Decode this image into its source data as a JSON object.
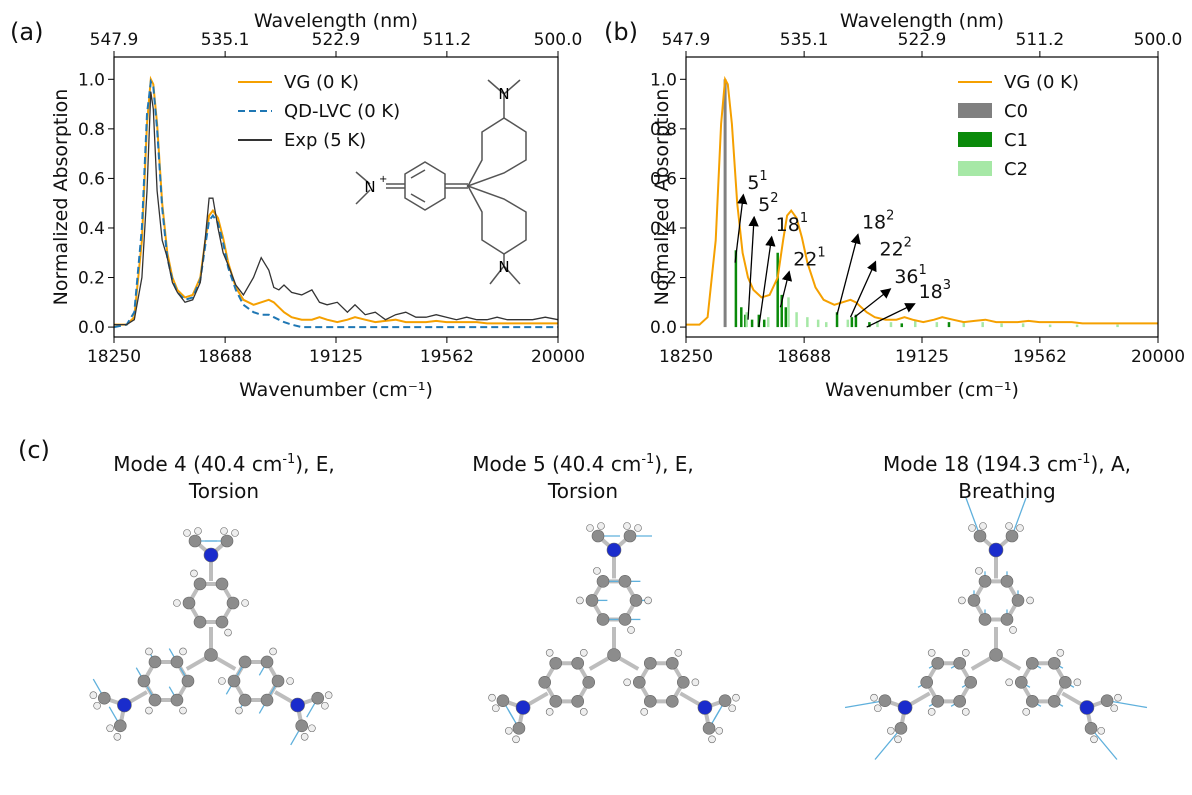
{
  "panel_labels": [
    "(a)",
    "(b)",
    "(c)"
  ],
  "colors": {
    "vg": "#f5a000",
    "qd": "#1f77b4",
    "exp": "#333333",
    "c0": "#808080",
    "c1": "#0a8a0a",
    "c2": "#a6e8a6",
    "nitrogen": "#1a2ccc",
    "carbon": "#8c8c8c",
    "hydrogen": "#eeeeee",
    "vector": "#5fb0dc"
  },
  "chart_data": [
    {
      "type": "line",
      "panel": "(a)",
      "xlabel": "Wavenumber (cm⁻¹)",
      "ylabel": "Normalized Absorption",
      "top_xlabel": "Wavelength (nm)",
      "xlim": [
        18250,
        20000
      ],
      "ylim": [
        -0.04,
        1.09
      ],
      "xticks": [
        "18250",
        "18688",
        "19125",
        "19562",
        "20000"
      ],
      "xtick_values": [
        18250,
        18688,
        19125,
        19562,
        20000
      ],
      "top_xticks": [
        "547.9",
        "535.1",
        "522.9",
        "511.2",
        "500.0"
      ],
      "yticks": [
        "0.0",
        "0.2",
        "0.4",
        "0.6",
        "0.8",
        "1.0"
      ],
      "ytick_values": [
        0.0,
        0.2,
        0.4,
        0.6,
        0.8,
        1.0
      ],
      "legend_position": "top-right",
      "series": [
        {
          "name": "VG (0 K)",
          "color": "#f5a000",
          "style": "solid",
          "x": [
            18250,
            18300,
            18330,
            18360,
            18380,
            18395,
            18405,
            18420,
            18440,
            18460,
            18480,
            18500,
            18530,
            18560,
            18590,
            18610,
            18625,
            18640,
            18660,
            18680,
            18700,
            18730,
            18760,
            18800,
            18830,
            18860,
            18880,
            18900,
            18920,
            18950,
            18990,
            19030,
            19060,
            19090,
            19130,
            19170,
            19200,
            19240,
            19280,
            19320,
            19360,
            19400,
            19440,
            19480,
            19520,
            19560,
            19600,
            19640,
            19680,
            19720,
            19760,
            19800,
            19850,
            19900,
            19950,
            20000
          ],
          "y": [
            0.01,
            0.01,
            0.04,
            0.35,
            0.82,
            1.0,
            0.98,
            0.82,
            0.5,
            0.3,
            0.2,
            0.15,
            0.12,
            0.13,
            0.2,
            0.35,
            0.45,
            0.47,
            0.44,
            0.36,
            0.26,
            0.16,
            0.11,
            0.09,
            0.1,
            0.11,
            0.1,
            0.08,
            0.06,
            0.04,
            0.03,
            0.03,
            0.04,
            0.03,
            0.02,
            0.03,
            0.04,
            0.03,
            0.02,
            0.025,
            0.03,
            0.02,
            0.02,
            0.02,
            0.025,
            0.02,
            0.02,
            0.02,
            0.02,
            0.015,
            0.015,
            0.015,
            0.015,
            0.015,
            0.015,
            0.015
          ]
        },
        {
          "name": "QD-LVC  (0 K)",
          "color": "#1f77b4",
          "style": "dashed",
          "x": [
            18250,
            18300,
            18330,
            18360,
            18380,
            18395,
            18405,
            18420,
            18440,
            18460,
            18480,
            18500,
            18530,
            18560,
            18590,
            18610,
            18625,
            18640,
            18660,
            18680,
            18700,
            18730,
            18760,
            18800,
            18830,
            18860,
            18880,
            18900,
            18920,
            18950,
            18990,
            19030,
            19060,
            19090,
            19130,
            19170,
            19200,
            19240,
            19280,
            19320,
            19360,
            19400,
            19440,
            19480,
            19520,
            19560,
            19600,
            19640,
            19680,
            19720,
            19760,
            19800,
            19850,
            19900,
            19950,
            20000
          ],
          "y": [
            0.0,
            0.01,
            0.06,
            0.4,
            0.86,
            0.99,
            0.97,
            0.8,
            0.48,
            0.28,
            0.19,
            0.14,
            0.11,
            0.12,
            0.19,
            0.33,
            0.43,
            0.45,
            0.42,
            0.34,
            0.24,
            0.15,
            0.09,
            0.06,
            0.05,
            0.05,
            0.04,
            0.03,
            0.02,
            0.01,
            0.0,
            0.0,
            0.0,
            0.0,
            0.0,
            0.0,
            0.0,
            0.0,
            0.0,
            0.0,
            0.0,
            0.0,
            0.0,
            0.0,
            0.0,
            0.0,
            0.0,
            0.0,
            0.0,
            0.0,
            0.0,
            0.0,
            0.0,
            0.0,
            0.0,
            0.0
          ]
        },
        {
          "name": "Exp (5 K)",
          "color": "#333333",
          "style": "solid",
          "x": [
            18250,
            18300,
            18330,
            18360,
            18380,
            18395,
            18405,
            18420,
            18440,
            18460,
            18480,
            18500,
            18530,
            18560,
            18590,
            18610,
            18625,
            18640,
            18660,
            18680,
            18700,
            18730,
            18760,
            18800,
            18830,
            18860,
            18880,
            18900,
            18920,
            18950,
            18990,
            19030,
            19060,
            19090,
            19130,
            19170,
            19200,
            19240,
            19280,
            19320,
            19360,
            19400,
            19440,
            19480,
            19520,
            19560,
            19600,
            19640,
            19680,
            19720,
            19760,
            19800,
            19850,
            19900,
            19950,
            20000
          ],
          "y": [
            0.01,
            0.01,
            0.03,
            0.2,
            0.55,
            0.95,
            0.88,
            0.55,
            0.35,
            0.28,
            0.18,
            0.14,
            0.1,
            0.11,
            0.18,
            0.36,
            0.52,
            0.52,
            0.4,
            0.3,
            0.25,
            0.17,
            0.13,
            0.2,
            0.28,
            0.23,
            0.16,
            0.15,
            0.17,
            0.14,
            0.13,
            0.15,
            0.1,
            0.09,
            0.1,
            0.06,
            0.09,
            0.05,
            0.06,
            0.03,
            0.05,
            0.06,
            0.04,
            0.04,
            0.05,
            0.04,
            0.03,
            0.04,
            0.03,
            0.03,
            0.04,
            0.03,
            0.03,
            0.03,
            0.04,
            0.03
          ]
        }
      ]
    },
    {
      "type": "line",
      "panel": "(b)",
      "xlabel": "Wavenumber (cm⁻¹)",
      "ylabel": "Normalized Absorption",
      "top_xlabel": "Wavelength (nm)",
      "xlim": [
        18250,
        20000
      ],
      "ylim": [
        -0.04,
        1.09
      ],
      "xticks": [
        "18250",
        "18688",
        "19125",
        "19562",
        "20000"
      ],
      "xtick_values": [
        18250,
        18688,
        19125,
        19562,
        20000
      ],
      "top_xticks": [
        "547.9",
        "535.1",
        "522.9",
        "511.2",
        "500.0"
      ],
      "yticks": [
        "0.0",
        "0.2",
        "0.4",
        "0.6",
        "0.8",
        "1.0"
      ],
      "ytick_values": [
        0.0,
        0.2,
        0.4,
        0.6,
        0.8,
        1.0
      ],
      "legend_position": "top-right",
      "series": [
        {
          "name": "VG (0 K)",
          "color": "#f5a000",
          "style": "solid",
          "x": [
            18250,
            18300,
            18330,
            18360,
            18380,
            18395,
            18405,
            18420,
            18440,
            18460,
            18480,
            18500,
            18530,
            18560,
            18590,
            18610,
            18625,
            18640,
            18660,
            18680,
            18700,
            18730,
            18760,
            18800,
            18830,
            18860,
            18880,
            18900,
            18920,
            18950,
            18990,
            19030,
            19060,
            19090,
            19130,
            19170,
            19200,
            19240,
            19280,
            19320,
            19360,
            19400,
            19440,
            19480,
            19520,
            19560,
            19600,
            19640,
            19680,
            19720,
            19760,
            19800,
            19850,
            19900,
            19950,
            20000
          ],
          "y": [
            0.01,
            0.01,
            0.04,
            0.35,
            0.82,
            1.0,
            0.98,
            0.82,
            0.5,
            0.3,
            0.2,
            0.15,
            0.12,
            0.13,
            0.2,
            0.35,
            0.45,
            0.47,
            0.44,
            0.36,
            0.26,
            0.16,
            0.11,
            0.09,
            0.1,
            0.11,
            0.1,
            0.08,
            0.06,
            0.04,
            0.03,
            0.03,
            0.04,
            0.03,
            0.02,
            0.03,
            0.04,
            0.03,
            0.02,
            0.025,
            0.03,
            0.02,
            0.02,
            0.02,
            0.025,
            0.02,
            0.02,
            0.02,
            0.02,
            0.015,
            0.015,
            0.015,
            0.015,
            0.015,
            0.015,
            0.015
          ]
        }
      ],
      "sticks": [
        {
          "name": "C0",
          "color": "#808080",
          "items": [
            {
              "x": 18395,
              "y": 1.0
            }
          ]
        },
        {
          "name": "C1",
          "color": "#0a8a0a",
          "items": [
            {
              "x": 18435,
              "y": 0.31
            },
            {
              "x": 18455,
              "y": 0.08
            },
            {
              "x": 18470,
              "y": 0.05
            },
            {
              "x": 18495,
              "y": 0.03
            },
            {
              "x": 18520,
              "y": 0.05
            },
            {
              "x": 18540,
              "y": 0.03
            },
            {
              "x": 18590,
              "y": 0.3
            },
            {
              "x": 18605,
              "y": 0.13
            },
            {
              "x": 18620,
              "y": 0.08
            },
            {
              "x": 18810,
              "y": 0.06
            },
            {
              "x": 18865,
              "y": 0.04
            },
            {
              "x": 18880,
              "y": 0.05
            },
            {
              "x": 18930,
              "y": 0.02
            },
            {
              "x": 19050,
              "y": 0.015
            },
            {
              "x": 19225,
              "y": 0.02
            }
          ]
        },
        {
          "name": "C2",
          "color": "#a6e8a6",
          "items": [
            {
              "x": 18475,
              "y": 0.06
            },
            {
              "x": 18555,
              "y": 0.04
            },
            {
              "x": 18630,
              "y": 0.12
            },
            {
              "x": 18660,
              "y": 0.06
            },
            {
              "x": 18700,
              "y": 0.04
            },
            {
              "x": 18740,
              "y": 0.03
            },
            {
              "x": 18770,
              "y": 0.02
            },
            {
              "x": 18850,
              "y": 0.03
            },
            {
              "x": 18960,
              "y": 0.025
            },
            {
              "x": 19010,
              "y": 0.02
            },
            {
              "x": 19100,
              "y": 0.025
            },
            {
              "x": 19180,
              "y": 0.02
            },
            {
              "x": 19280,
              "y": 0.02
            },
            {
              "x": 19350,
              "y": 0.02
            },
            {
              "x": 19420,
              "y": 0.015
            },
            {
              "x": 19500,
              "y": 0.015
            },
            {
              "x": 19600,
              "y": 0.01
            },
            {
              "x": 19700,
              "y": 0.01
            },
            {
              "x": 19850,
              "y": 0.01
            }
          ]
        }
      ],
      "annotations": [
        {
          "base": "5",
          "sup": "1",
          "x": 18470,
          "y": 0.55,
          "target_x": 18432,
          "target_y": 0.26
        },
        {
          "base": "5",
          "sup": "2",
          "x": 18510,
          "y": 0.46,
          "target_x": 18480,
          "target_y": 0.03
        },
        {
          "base": "18",
          "sup": "1",
          "x": 18575,
          "y": 0.38,
          "target_x": 18520,
          "target_y": 0.0
        },
        {
          "base": "22",
          "sup": "1",
          "x": 18640,
          "y": 0.24,
          "target_x": 18600,
          "target_y": 0.08
        },
        {
          "base": "18",
          "sup": "2",
          "x": 18895,
          "y": 0.39,
          "target_x": 18810,
          "target_y": 0.05
        },
        {
          "base": "22",
          "sup": "2",
          "x": 18960,
          "y": 0.28,
          "target_x": 18860,
          "target_y": 0.04
        },
        {
          "base": "36",
          "sup": "1",
          "x": 19015,
          "y": 0.17,
          "target_x": 18875,
          "target_y": 0.04
        },
        {
          "base": "18",
          "sup": "3",
          "x": 19105,
          "y": 0.11,
          "target_x": 18920,
          "target_y": 0.0
        }
      ]
    }
  ],
  "modes": [
    {
      "title": "Mode 4 (40.4 cm",
      "sup": "-1",
      "rest": "), E,",
      "desc": "Torsion"
    },
    {
      "title": "Mode 5 (40.4 cm",
      "sup": "-1",
      "rest": "), E,",
      "desc": "Torsion"
    },
    {
      "title": "Mode 18 (194.3 cm",
      "sup": "-1",
      "rest": "), A,",
      "desc": "Breathing"
    }
  ],
  "structure_labels": {
    "iminium": "N",
    "iminium_charge": "+",
    "amine_top": "N",
    "amine_bottom": "N"
  }
}
